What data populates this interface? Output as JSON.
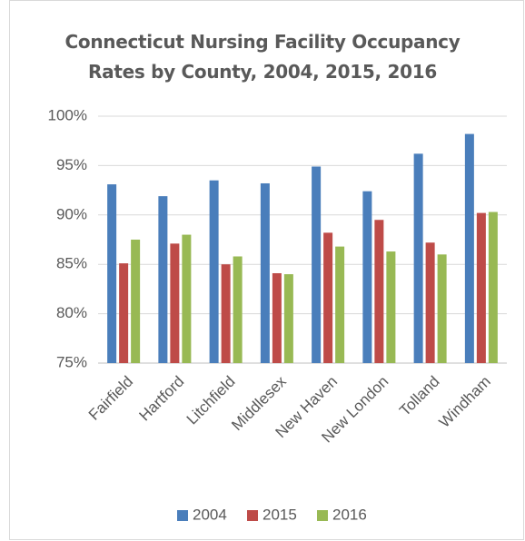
{
  "chart_data": {
    "type": "bar",
    "title": "Connecticut Nursing Facility Occupancy Rates by County, 2004, 2015, 2016",
    "categories": [
      "Fairfield",
      "Hartford",
      "Litchfield",
      "Middlesex",
      "New Haven",
      "New London",
      "Tolland",
      "Windham"
    ],
    "series": [
      {
        "name": "2004",
        "color": "#4a7ebb",
        "values": [
          93.1,
          91.9,
          93.5,
          93.2,
          94.9,
          92.4,
          96.2,
          98.2
        ]
      },
      {
        "name": "2015",
        "color": "#be4b48",
        "values": [
          85.1,
          87.1,
          85.0,
          84.1,
          88.2,
          89.5,
          87.2,
          90.2
        ]
      },
      {
        "name": "2016",
        "color": "#98b954",
        "values": [
          87.5,
          88.0,
          85.8,
          84.0,
          86.8,
          86.3,
          86.0,
          90.3
        ]
      }
    ],
    "ylim": [
      75,
      100
    ],
    "yticks": [
      {
        "value": 75,
        "label": "75%"
      },
      {
        "value": 80,
        "label": "80%"
      },
      {
        "value": 85,
        "label": "85%"
      },
      {
        "value": 90,
        "label": "90%"
      },
      {
        "value": 95,
        "label": "95%"
      },
      {
        "value": 100,
        "label": "100%"
      }
    ],
    "grid": true,
    "legend": "bottom"
  }
}
